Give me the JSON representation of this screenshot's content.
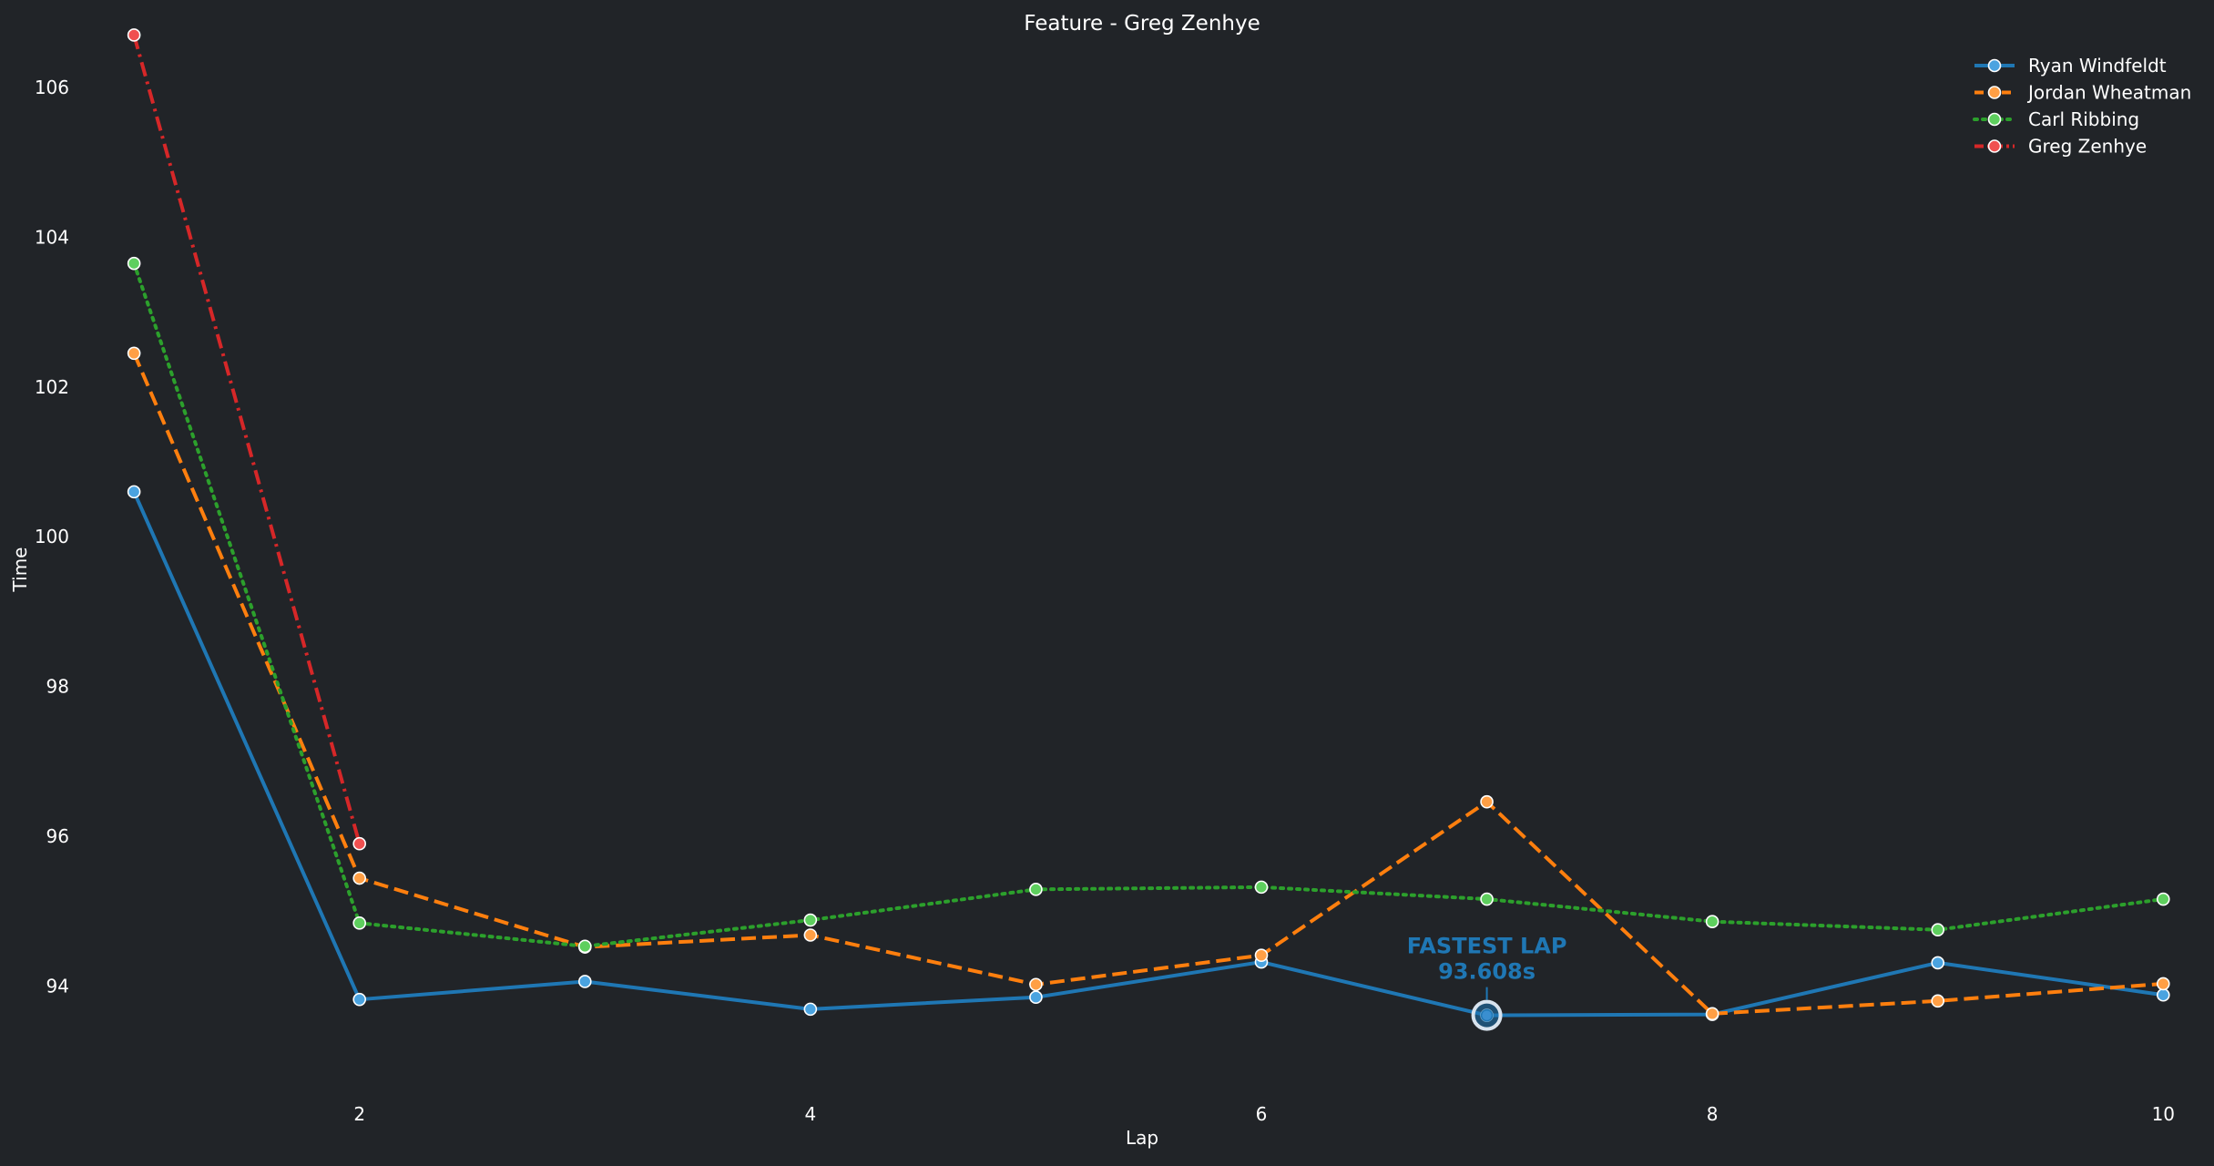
{
  "chart_data": {
    "type": "line",
    "title": "Feature - Greg Zenhye",
    "xlabel": "Lap",
    "ylabel": "Time",
    "xlim": [
      0.85,
      10.12
    ],
    "ylim": [
      92.63,
      106.9
    ],
    "xticks": [
      2,
      4,
      6,
      8,
      10
    ],
    "yticks": [
      94,
      96,
      98,
      100,
      102,
      104,
      106
    ],
    "grid": false,
    "legend_position": "top-right",
    "background": "#212428",
    "text_color": "#ffffff",
    "series": [
      {
        "name": "Ryan Windfeldt",
        "color": "#1f77b4",
        "marker_color": "#4aa3e0",
        "dash": "solid",
        "x": [
          1,
          2,
          3,
          4,
          5,
          6,
          7,
          8,
          9,
          10
        ],
        "values": [
          100.6,
          93.82,
          94.06,
          93.69,
          93.85,
          94.32,
          93.608,
          93.62,
          94.31,
          93.88
        ]
      },
      {
        "name": "Jordan Wheatman",
        "color": "#ff7f0e",
        "marker_color": "#ff9f45",
        "dash": "dashed",
        "x": [
          1,
          2,
          3,
          4,
          5,
          6,
          7,
          8,
          9,
          10
        ],
        "values": [
          102.45,
          95.44,
          94.52,
          94.68,
          94.02,
          94.41,
          96.46,
          93.63,
          93.8,
          94.03
        ]
      },
      {
        "name": "Carl Ribbing",
        "color": "#2ca02c",
        "marker_color": "#5ecf5e",
        "dash": "dotted",
        "x": [
          1,
          2,
          3,
          4,
          5,
          6,
          7,
          8,
          9,
          10
        ],
        "values": [
          103.65,
          94.84,
          94.53,
          94.88,
          95.29,
          95.32,
          95.16,
          94.86,
          94.75,
          95.16
        ]
      },
      {
        "name": "Greg Zenhye",
        "color": "#d62728",
        "marker_color": "#f05050",
        "dash": "dashdot",
        "x": [
          1,
          2
        ],
        "values": [
          106.7,
          95.9
        ]
      }
    ],
    "annotations": [
      {
        "series": "Ryan Windfeldt",
        "x": 7,
        "y": 93.608,
        "line1": "FASTEST LAP",
        "line2": "93.608s",
        "color": "#1f77b4"
      }
    ]
  }
}
